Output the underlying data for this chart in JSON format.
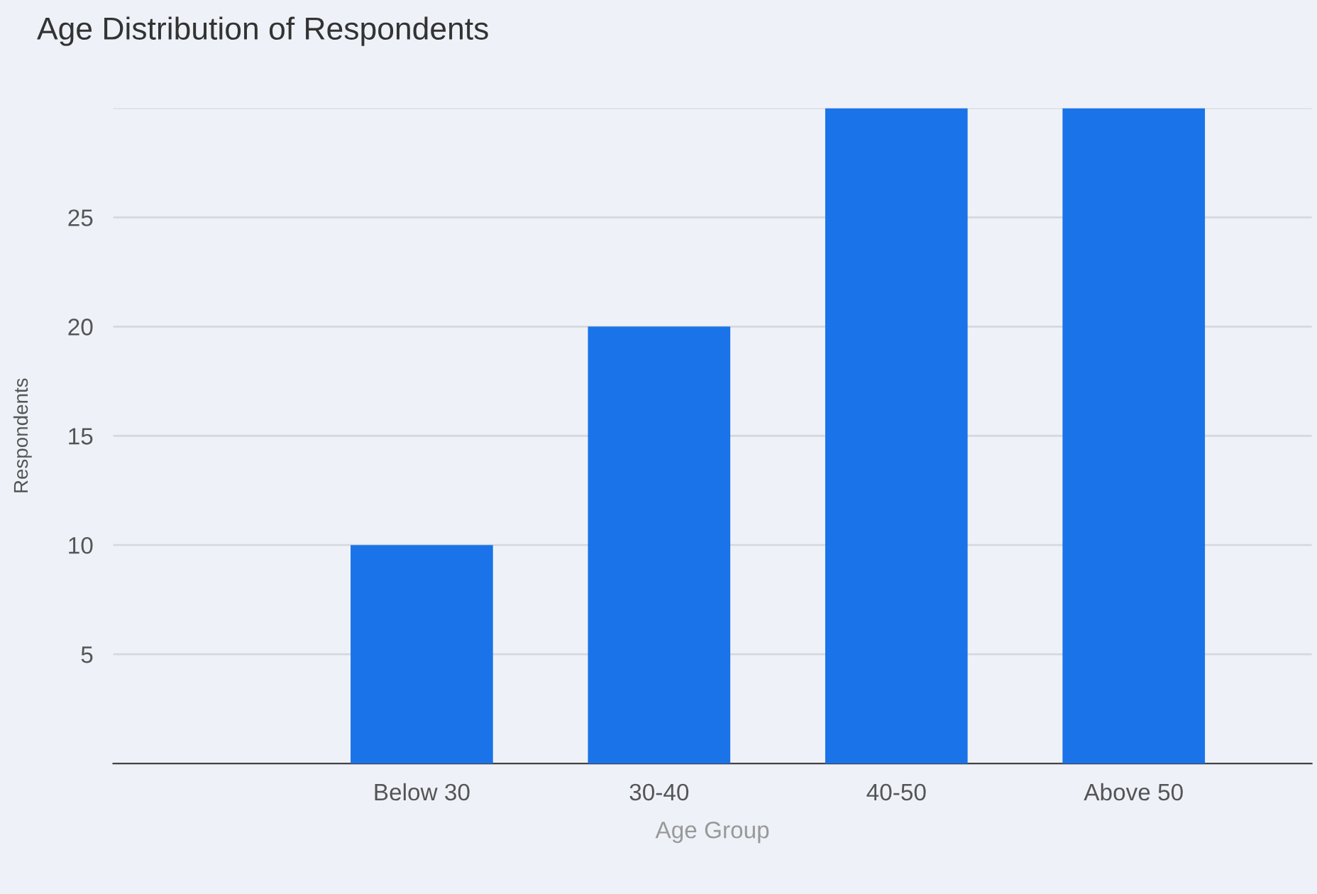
{
  "chart_data": {
    "type": "bar",
    "title": "Age Distribution of Respondents",
    "xlabel": "Age Group",
    "ylabel": "Respondents",
    "categories": [
      null,
      "Below 30",
      "30-40",
      "40-50",
      "Above 50"
    ],
    "values": [
      null,
      10,
      20,
      30,
      30
    ],
    "color": "#1a73e8",
    "ylim": [
      0,
      30
    ],
    "yticks": [
      {
        "value": 0,
        "label": null
      },
      5,
      10,
      15,
      20,
      25,
      {
        "value": 30,
        "label": null
      }
    ],
    "grid": "y",
    "legend": false
  }
}
